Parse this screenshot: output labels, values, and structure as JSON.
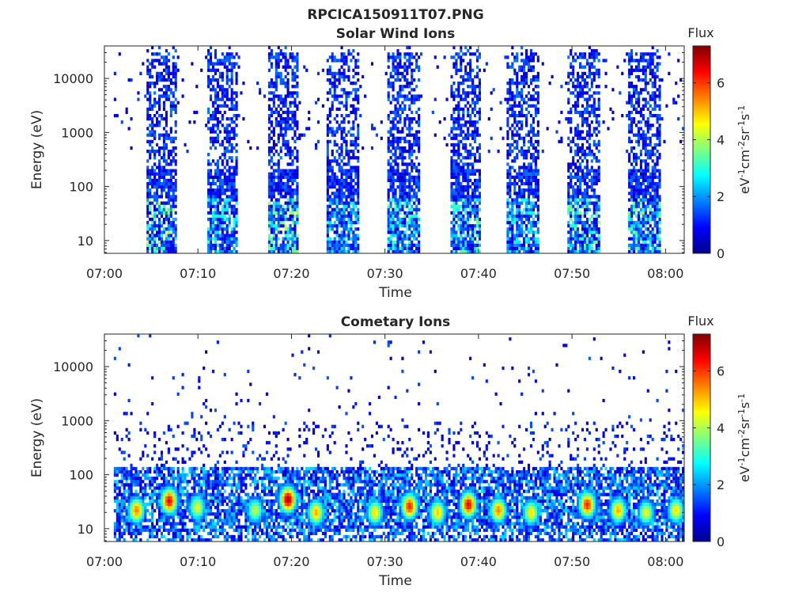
{
  "figure": {
    "title": "RPCICA150911T07.PNG"
  },
  "colorbar": {
    "title": "Flux",
    "label_main": "eV",
    "label_text": "eV-1cm-2sr-1s-1",
    "ticks": [
      "0",
      "2",
      "4",
      "6"
    ],
    "range": [
      0,
      7.3
    ]
  },
  "chart_data": [
    {
      "type": "heatmap",
      "title": "Solar Wind Ions",
      "xlabel": "Time",
      "ylabel": "Energy (eV)",
      "xticks": [
        "07:00",
        "07:10",
        "07:20",
        "07:30",
        "07:40",
        "07:50",
        "08:00"
      ],
      "yticks": [
        "10",
        "100",
        "1000",
        "10000"
      ],
      "xlim": [
        "07:00",
        "08:02"
      ],
      "ylim": [
        5.8,
        40000
      ],
      "yscale": "log",
      "colormap": "jet",
      "clim": [
        0,
        7.3
      ],
      "bursts": [
        {
          "start": "07:04.5",
          "end": "07:07.7",
          "peak_flux": 4.2
        },
        {
          "start": "07:11.0",
          "end": "07:14.0",
          "peak_flux": 3.2
        },
        {
          "start": "07:17.3",
          "end": "07:20.5",
          "peak_flux": 4.2
        },
        {
          "start": "07:23.7",
          "end": "07:27.0",
          "peak_flux": 3.0
        },
        {
          "start": "07:30.2",
          "end": "07:33.5",
          "peak_flux": 3.4
        },
        {
          "start": "07:36.8",
          "end": "07:40.0",
          "peak_flux": 3.6
        },
        {
          "start": "07:43.0",
          "end": "07:46.3",
          "peak_flux": 3.0
        },
        {
          "start": "07:49.5",
          "end": "07:52.8",
          "peak_flux": 3.8
        },
        {
          "start": "07:56.0",
          "end": "07:59.3",
          "peak_flux": 3.8
        }
      ]
    },
    {
      "type": "heatmap",
      "title": "Cometary Ions",
      "xlabel": "Time",
      "ylabel": "Energy (eV)",
      "xticks": [
        "07:00",
        "07:10",
        "07:20",
        "07:30",
        "07:40",
        "07:50",
        "08:00"
      ],
      "yticks": [
        "10",
        "100",
        "1000",
        "10000"
      ],
      "xlim": [
        "07:00",
        "08:02"
      ],
      "ylim": [
        5.8,
        40000
      ],
      "yscale": "log",
      "colormap": "jet",
      "clim": [
        0,
        7.3
      ],
      "hotspots": [
        {
          "time": "07:03.3",
          "energy": 22,
          "flux": 5.5
        },
        {
          "time": "07:06.8",
          "energy": 33,
          "flux": 6.5
        },
        {
          "time": "07:09.8",
          "energy": 25,
          "flux": 4.5
        },
        {
          "time": "07:16.0",
          "energy": 22,
          "flux": 4.2
        },
        {
          "time": "07:19.5",
          "energy": 35,
          "flux": 7.0
        },
        {
          "time": "07:22.5",
          "energy": 20,
          "flux": 5.2
        },
        {
          "time": "07:28.8",
          "energy": 20,
          "flux": 4.8
        },
        {
          "time": "07:32.5",
          "energy": 26,
          "flux": 6.2
        },
        {
          "time": "07:35.5",
          "energy": 20,
          "flux": 5.0
        },
        {
          "time": "07:38.8",
          "energy": 28,
          "flux": 6.5
        },
        {
          "time": "07:42.0",
          "energy": 22,
          "flux": 5.5
        },
        {
          "time": "07:45.5",
          "energy": 20,
          "flux": 4.8
        },
        {
          "time": "07:51.5",
          "energy": 28,
          "flux": 6.2
        },
        {
          "time": "07:54.8",
          "energy": 22,
          "flux": 5.2
        },
        {
          "time": "07:57.8",
          "energy": 20,
          "flux": 4.5
        },
        {
          "time": "08:01.0",
          "energy": 22,
          "flux": 4.8
        }
      ]
    }
  ]
}
